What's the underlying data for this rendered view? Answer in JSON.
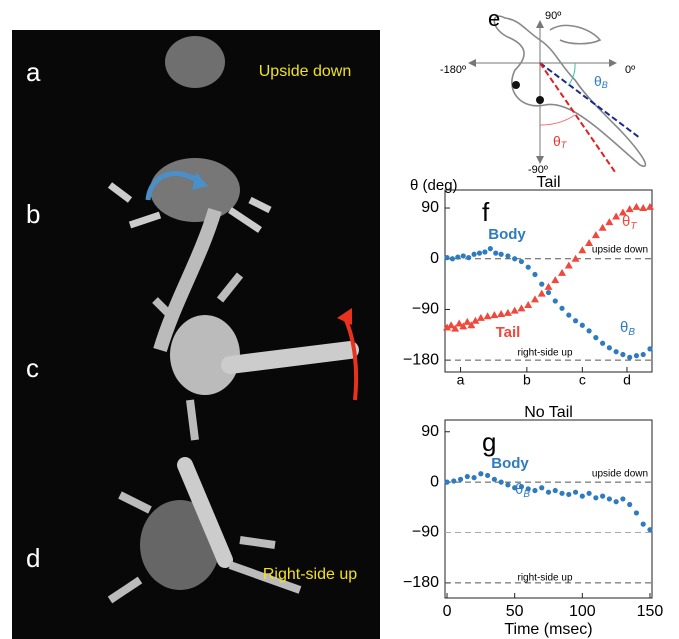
{
  "photo": {
    "labels": [
      "a",
      "b",
      "c",
      "d"
    ],
    "captions": [
      "Upside down",
      "Right-side up"
    ]
  },
  "diagram": {
    "label": "e",
    "angles": [
      "90º",
      "0º",
      "-180º",
      "-90º"
    ],
    "theta_body": {
      "symbol": "θ",
      "sub": "B"
    },
    "theta_tail": {
      "symbol": "θ",
      "sub": "T"
    }
  },
  "y_label": "θ (deg)",
  "chart_data": [
    {
      "type": "scatter",
      "panel": "f",
      "title": "Tail",
      "xlim": [
        -1.5,
        151.5
      ],
      "ylim": [
        -201,
        122
      ],
      "xticks": [
        {
          "value": 10,
          "label": "a"
        },
        {
          "value": 59,
          "label": "b"
        },
        {
          "value": 100,
          "label": "c"
        },
        {
          "value": 133,
          "label": "d"
        }
      ],
      "yticks": [
        90,
        0,
        {
          "value": -90,
          "label": "−90"
        },
        {
          "value": -180,
          "label": "−180"
        }
      ],
      "hlines": [
        {
          "value": 0,
          "label": "upside down"
        },
        {
          "value": -180,
          "label": "right-side up"
        }
      ],
      "series": [
        {
          "name": "Body",
          "color": "#2f7bbf",
          "marker": "circle",
          "symbol": "θ",
          "sub": "B",
          "x": [
            0,
            4,
            8,
            12,
            16,
            20,
            24,
            28,
            32,
            36,
            40,
            45,
            50,
            55,
            60,
            65,
            70,
            75,
            80,
            85,
            90,
            95,
            100,
            105,
            110,
            115,
            120,
            125,
            130,
            135,
            140,
            145,
            150
          ],
          "values": [
            2,
            0,
            3,
            5,
            2,
            8,
            10,
            12,
            18,
            10,
            8,
            5,
            0,
            -5,
            -15,
            -28,
            -45,
            -60,
            -75,
            -88,
            -100,
            -110,
            -118,
            -128,
            -140,
            -150,
            -158,
            -165,
            -170,
            -175,
            -172,
            -170,
            -160
          ]
        },
        {
          "name": "Tail",
          "color": "#f0483c",
          "marker": "triangle",
          "symbol": "θ",
          "sub": "T",
          "x": [
            0,
            3,
            6,
            9,
            12,
            15,
            18,
            21,
            25,
            30,
            35,
            40,
            45,
            50,
            55,
            60,
            65,
            70,
            75,
            80,
            85,
            90,
            95,
            100,
            105,
            110,
            115,
            120,
            125,
            130,
            135,
            140,
            145,
            150
          ],
          "values": [
            -122,
            -118,
            -124,
            -115,
            -120,
            -112,
            -118,
            -110,
            -105,
            -102,
            -100,
            -98,
            -96,
            -92,
            -88,
            -82,
            -72,
            -62,
            -50,
            -38,
            -25,
            -12,
            0,
            15,
            28,
            42,
            55,
            65,
            75,
            82,
            88,
            92,
            90,
            92
          ]
        }
      ]
    },
    {
      "type": "scatter",
      "panel": "g",
      "title": "No Tail",
      "x_label": "Time (msec)",
      "xlim": [
        -1.5,
        151.5
      ],
      "ylim": [
        -207,
        111
      ],
      "xticks": [
        0,
        50,
        100,
        150
      ],
      "yticks": [
        90,
        0,
        {
          "value": -90,
          "label": "−90"
        },
        {
          "value": -180,
          "label": "−180"
        }
      ],
      "hlines": [
        {
          "value": 0,
          "label": "upside down"
        },
        {
          "value": -90
        },
        {
          "value": -180,
          "label": "right-side up"
        }
      ],
      "series": [
        {
          "name": "Body",
          "color": "#2f7bbf",
          "marker": "circle",
          "symbol": "θ",
          "sub": "B",
          "x": [
            0,
            5,
            10,
            15,
            20,
            25,
            30,
            35,
            40,
            45,
            50,
            55,
            60,
            65,
            70,
            75,
            80,
            85,
            90,
            95,
            100,
            105,
            110,
            115,
            120,
            125,
            130,
            135,
            140,
            145,
            150
          ],
          "values": [
            0,
            2,
            5,
            10,
            8,
            15,
            12,
            5,
            0,
            -5,
            -10,
            -8,
            -12,
            -15,
            -10,
            -18,
            -15,
            -20,
            -22,
            -18,
            -25,
            -20,
            -28,
            -25,
            -30,
            -35,
            -30,
            -40,
            -55,
            -75,
            -85
          ]
        }
      ]
    }
  ]
}
